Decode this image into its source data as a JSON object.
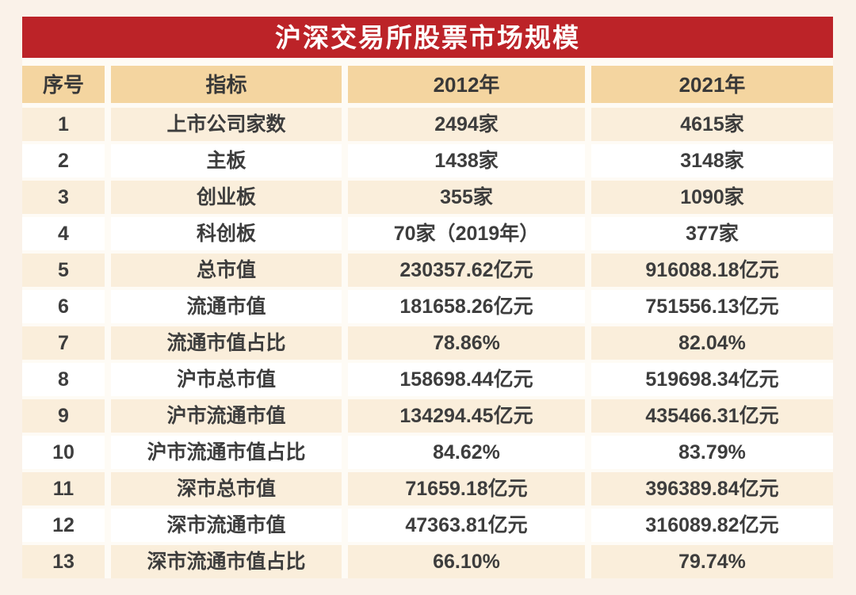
{
  "banner": {
    "title": "沪深交易所股票市场规模",
    "background": "#BC2328",
    "text_color": "#FFFFFF"
  },
  "table": {
    "header_background": "#F4D5A0",
    "odd_row_background": "#FAEEDB",
    "even_row_background": "#FFFFFF",
    "page_background": "#FAF2E9"
  },
  "chart_data": {
    "type": "table",
    "title": "沪深交易所股票市场规模",
    "columns": [
      "序号",
      "指标",
      "2012年",
      "2021年"
    ],
    "rows": [
      [
        "1",
        "上市公司家数",
        "2494家",
        "4615家"
      ],
      [
        "2",
        "主板",
        "1438家",
        "3148家"
      ],
      [
        "3",
        "创业板",
        "355家",
        "1090家"
      ],
      [
        "4",
        "科创板",
        "70家（2019年）",
        "377家"
      ],
      [
        "5",
        "总市值",
        "230357.62亿元",
        "916088.18亿元"
      ],
      [
        "6",
        "流通市值",
        "181658.26亿元",
        "751556.13亿元"
      ],
      [
        "7",
        "流通市值占比",
        "78.86%",
        "82.04%"
      ],
      [
        "8",
        "沪市总市值",
        "158698.44亿元",
        "519698.34亿元"
      ],
      [
        "9",
        "沪市流通市值",
        "134294.45亿元",
        "435466.31亿元"
      ],
      [
        "10",
        "沪市流通市值占比",
        "84.62%",
        "83.79%"
      ],
      [
        "11",
        "深市总市值",
        "71659.18亿元",
        "396389.84亿元"
      ],
      [
        "12",
        "深市流通市值",
        "47363.81亿元",
        "316089.82亿元"
      ],
      [
        "13",
        "深市流通市值占比",
        "66.10%",
        "79.74%"
      ]
    ]
  }
}
